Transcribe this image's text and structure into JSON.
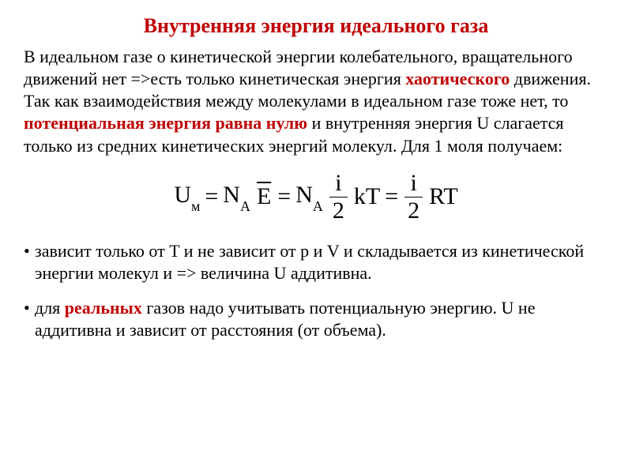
{
  "colors": {
    "title": "#c00000",
    "emph": "#c00000",
    "text": "#000000",
    "bg": "#ffffff"
  },
  "fontsize": {
    "title": 26,
    "body": 22,
    "formula": 30
  },
  "title": "Внутренняя энергия идеального газа",
  "para": {
    "t1": "В идеальном газе о кинетической энергии колебательного, вращательного движений нет =>есть только кинетическая энергия ",
    "emph1": "хаотического",
    "t2": " движения. Так как взаимодействия между молекулами в идеальном газе тоже нет, то ",
    "emph2": "потенциальная энергия равна нулю",
    "t3": " и внутренняя энергия U слагается только из средних кинетических энергий молекул. Для 1 моля получаем:"
  },
  "formula": {
    "U": "U",
    "sub_m": "м",
    "eq": "=",
    "N": "N",
    "sub_A": "A",
    "Ebar": "E",
    "i": "i",
    "two": "2",
    "k": "k",
    "T": "T",
    "R": "R"
  },
  "bullet1": {
    "t1": " зависит только от T и не зависит от p и V и складывается из кинетической энергии молекул и => величина U аддитивна."
  },
  "bullet2": {
    "t1": "для ",
    "emph1": "реальных",
    "t2": " газов надо учитывать потенциальную энергию. U не аддитивна и зависит от расстояния (от объема)."
  }
}
